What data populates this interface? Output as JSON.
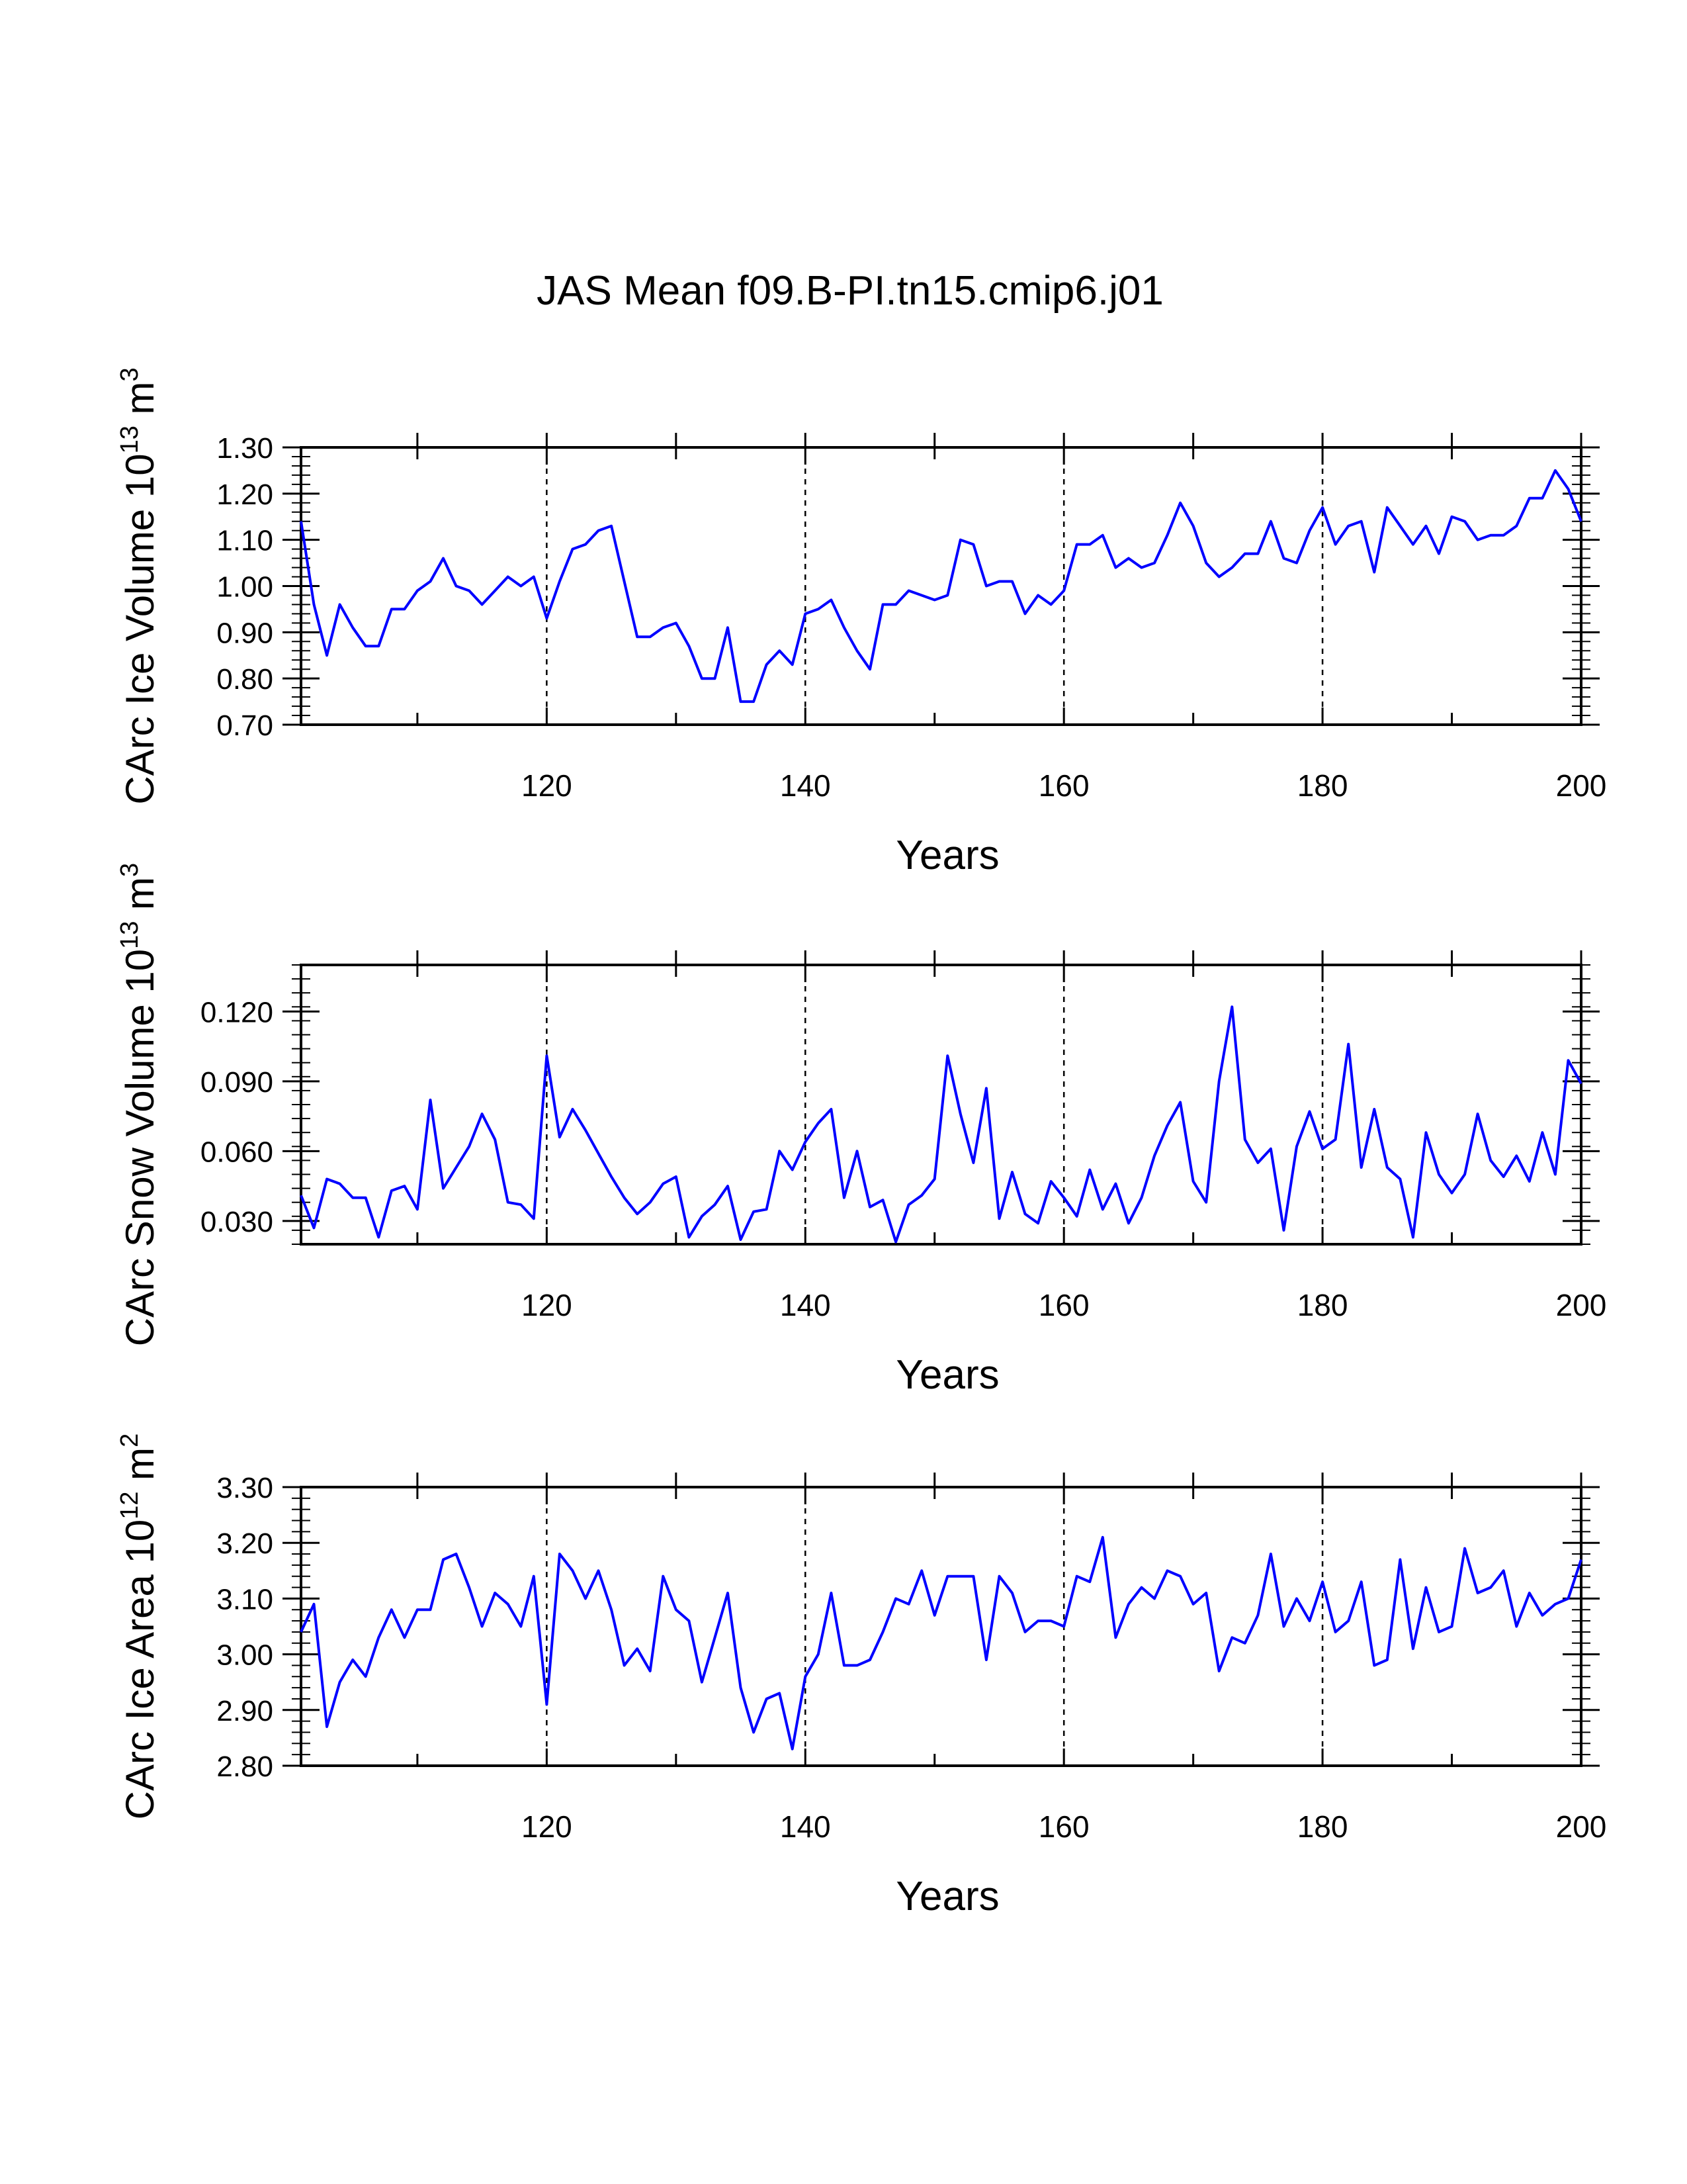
{
  "title": "JAS Mean f09.B-PI.tn15.cmip6.j01",
  "colors": {
    "line": "#0000ff",
    "axis": "#000000",
    "background": "#ffffff"
  },
  "chart_data": [
    {
      "type": "line",
      "title": "JAS Mean f09.B-PI.tn15.cmip6.j01",
      "xlabel": "Years",
      "ylabel": "CArc Ice Volume 10",
      "ylabel_exp": "13",
      "ylabel_unit": " m",
      "ylabel_unit_exp": "3",
      "xlim": [
        101,
        200
      ],
      "ylim": [
        0.7,
        1.3
      ],
      "xticks": [
        120,
        140,
        160,
        180,
        200
      ],
      "yticks": [
        "0.70",
        "0.80",
        "0.90",
        "1.00",
        "1.10",
        "1.20",
        "1.30"
      ],
      "grid_x": [
        120,
        140,
        160,
        180
      ],
      "x_start": 101,
      "values": [
        1.14,
        0.96,
        0.85,
        0.96,
        0.91,
        0.87,
        0.87,
        0.95,
        0.95,
        0.99,
        1.01,
        1.06,
        1.0,
        0.99,
        0.96,
        0.99,
        1.02,
        1.0,
        1.02,
        0.93,
        1.01,
        1.08,
        1.09,
        1.12,
        1.13,
        1.01,
        0.89,
        0.89,
        0.91,
        0.92,
        0.87,
        0.8,
        0.8,
        0.91,
        0.75,
        0.75,
        0.83,
        0.86,
        0.83,
        0.94,
        0.95,
        0.97,
        0.91,
        0.86,
        0.82,
        0.96,
        0.96,
        0.99,
        0.98,
        0.97,
        0.98,
        1.1,
        1.09,
        1.0,
        1.01,
        1.01,
        0.94,
        0.98,
        0.96,
        0.99,
        1.09,
        1.09,
        1.11,
        1.04,
        1.06,
        1.04,
        1.05,
        1.11,
        1.18,
        1.13,
        1.05,
        1.02,
        1.04,
        1.07,
        1.07,
        1.14,
        1.06,
        1.05,
        1.12,
        1.17,
        1.09,
        1.13,
        1.14,
        1.03,
        1.17,
        1.13,
        1.09,
        1.13,
        1.07,
        1.15,
        1.14,
        1.1,
        1.11,
        1.11,
        1.13,
        1.19,
        1.19,
        1.25,
        1.21,
        1.14
      ]
    },
    {
      "type": "line",
      "xlabel": "Years",
      "ylabel": "CArc Snow Volume 10",
      "ylabel_exp": "13",
      "ylabel_unit": " m",
      "ylabel_unit_exp": "3",
      "xlim": [
        101,
        200
      ],
      "ylim": [
        0.02,
        0.14
      ],
      "xticks": [
        120,
        140,
        160,
        180,
        200
      ],
      "yticks": [
        "0.030",
        "0.060",
        "0.090",
        "0.120"
      ],
      "grid_x": [
        120,
        140,
        160,
        180
      ],
      "x_start": 101,
      "values": [
        0.041,
        0.027,
        0.048,
        0.046,
        0.04,
        0.04,
        0.023,
        0.043,
        0.045,
        0.035,
        0.082,
        0.044,
        0.053,
        0.062,
        0.076,
        0.065,
        0.038,
        0.037,
        0.031,
        0.101,
        0.066,
        0.078,
        0.069,
        0.059,
        0.049,
        0.04,
        0.033,
        0.038,
        0.046,
        0.049,
        0.023,
        0.032,
        0.037,
        0.045,
        0.022,
        0.034,
        0.035,
        0.06,
        0.052,
        0.064,
        0.072,
        0.078,
        0.04,
        0.06,
        0.036,
        0.039,
        0.021,
        0.037,
        0.041,
        0.048,
        0.101,
        0.076,
        0.055,
        0.087,
        0.031,
        0.051,
        0.033,
        0.029,
        0.047,
        0.04,
        0.032,
        0.052,
        0.035,
        0.046,
        0.029,
        0.04,
        0.058,
        0.071,
        0.081,
        0.047,
        0.038,
        0.09,
        0.122,
        0.065,
        0.055,
        0.061,
        0.026,
        0.062,
        0.077,
        0.061,
        0.065,
        0.106,
        0.053,
        0.078,
        0.053,
        0.048,
        0.023,
        0.068,
        0.05,
        0.042,
        0.05,
        0.076,
        0.056,
        0.049,
        0.058,
        0.047,
        0.068,
        0.05,
        0.099,
        0.089
      ]
    },
    {
      "type": "line",
      "xlabel": "Years",
      "ylabel": "CArc Ice Area 10",
      "ylabel_exp": "12",
      "ylabel_unit": " m",
      "ylabel_unit_exp": "2",
      "xlim": [
        101,
        200
      ],
      "ylim": [
        2.8,
        3.3
      ],
      "xticks": [
        120,
        140,
        160,
        180,
        200
      ],
      "yticks": [
        "2.80",
        "2.90",
        "3.00",
        "3.10",
        "3.20",
        "3.30"
      ],
      "grid_x": [
        120,
        140,
        160,
        180
      ],
      "x_start": 101,
      "values": [
        3.04,
        3.09,
        2.87,
        2.95,
        2.99,
        2.96,
        3.03,
        3.08,
        3.03,
        3.08,
        3.08,
        3.17,
        3.18,
        3.12,
        3.05,
        3.11,
        3.09,
        3.05,
        3.14,
        2.91,
        3.18,
        3.15,
        3.1,
        3.15,
        3.08,
        2.98,
        3.01,
        2.97,
        3.14,
        3.08,
        3.06,
        2.95,
        3.03,
        3.11,
        2.94,
        2.86,
        2.92,
        2.93,
        2.83,
        2.96,
        3.0,
        3.11,
        2.98,
        2.98,
        2.99,
        3.04,
        3.1,
        3.09,
        3.15,
        3.07,
        3.14,
        3.14,
        3.14,
        2.99,
        3.14,
        3.11,
        3.04,
        3.06,
        3.06,
        3.05,
        3.14,
        3.13,
        3.21,
        3.03,
        3.09,
        3.12,
        3.1,
        3.15,
        3.14,
        3.09,
        3.11,
        2.97,
        3.03,
        3.02,
        3.07,
        3.18,
        3.05,
        3.1,
        3.06,
        3.13,
        3.04,
        3.06,
        3.13,
        2.98,
        2.99,
        3.17,
        3.01,
        3.12,
        3.04,
        3.05,
        3.19,
        3.11,
        3.12,
        3.15,
        3.05,
        3.11,
        3.07,
        3.09,
        3.1,
        3.17
      ]
    }
  ]
}
